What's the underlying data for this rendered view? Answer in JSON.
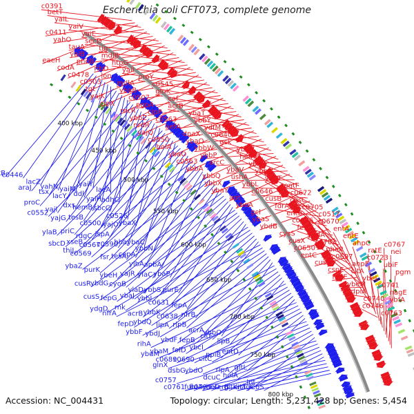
{
  "header": {
    "title": "Escherichia coli CFT073, complete genome"
  },
  "footer": {
    "accession": "Accession: NC_004431",
    "topology": "Topology: circular; Length: 5,231,428 bp; Genes: 5,454"
  },
  "colors": {
    "forward": "#e8141e",
    "reverse": "#1d1ded",
    "backbone": "#8a8a8a",
    "ticks": "#1e8c1e",
    "other": "#dd88dd",
    "other2": "#30c0d8"
  },
  "icons": {
    "genome-map": "circular-genome-arc"
  },
  "kbp_labels": [
    "400 kbp",
    "450 kbp",
    "500 kbp",
    "550 kbp",
    "600 kbp",
    "650 kbp",
    "700 kbp",
    "750 kbp",
    "800 kbp"
  ],
  "red_genes": [
    "c0391",
    "c0411",
    "eaeH",
    "betT",
    "yahO",
    "codA",
    "yaiL",
    "tauA",
    "c0478",
    "yaiV",
    "yaiB",
    "c0503",
    "yaiE",
    "phoB",
    "tgt",
    "secD",
    "ribD",
    "yajK",
    "tig",
    "lon",
    "clpX",
    "mdlB",
    "mdlA",
    "recR",
    "htpG",
    "ybaB",
    "ybbZ",
    "yaiI",
    "c0507",
    "nrdR",
    "proY",
    "pgpA",
    "yajQ",
    "c0545",
    "clpP",
    "c0550",
    "glnK",
    "c0563",
    "bolA",
    "cof",
    "aefA",
    "ybaO",
    "acrB",
    "dnaX",
    "c0563",
    "ybaT",
    "ybaQ",
    "ybbA",
    "ybbY",
    "ybbW",
    "ybbQ",
    "ydfM",
    "ybbP",
    "ybbX",
    "c0640",
    "arcC",
    "ybaY",
    "gsk",
    "ybaV",
    "apt",
    "ybaN",
    "ushA",
    "ybaA",
    "hemH",
    "ybbL",
    "gcl",
    "ybbF",
    "c0646",
    "ybaS",
    "ybbU",
    "cusB",
    "ybdB",
    "ybbT",
    "fdrA",
    "cysS",
    "entF",
    "entB",
    "cusX",
    "c0672",
    "c0686",
    "c0650",
    "cusC",
    "fes",
    "entC",
    "c0705",
    "ybdA",
    "cusA",
    "c0517",
    "c0703",
    "cspE",
    "c0670",
    "pheP",
    "fepE",
    "entA",
    "c0697",
    "ybeM",
    "entE",
    "ahpF",
    "dpiA",
    "ahpC",
    "citA",
    "c0740",
    "ratE",
    "ybeL",
    "c0746",
    "c0723",
    "c0741",
    "c0763",
    "ubiF",
    "nagE",
    "c0767",
    "pgm",
    "ybfA",
    "nei"
  ],
  "blue_genes": [
    "betB",
    "c0446",
    "lacZ",
    "yahN",
    "yaiM",
    "yaiY",
    "lacA",
    "araJ",
    "tsx",
    "lacY",
    "ddl",
    "yaiH",
    "adhC",
    "proC",
    "yajI",
    "dxs",
    "hemB",
    "sbcC",
    "c0526",
    "c0552",
    "yajG",
    "tesB",
    "c0500",
    "yajO",
    "ybaX",
    "ylaB",
    "priC",
    "rdgC",
    "ispA",
    "hha",
    "ybaC",
    "sbcD",
    "xseB",
    "c0567",
    "c0590",
    "copA",
    "ybbN",
    "thiJ",
    "c0569",
    "fsr",
    "tesA",
    "ylbA",
    "apbA",
    "ybaZ",
    "purK",
    "ybeH",
    "yajR",
    "ylaC",
    "ybaP",
    "cusR",
    "ybdG",
    "cyoB",
    "ylaD",
    "ybbS",
    "purE",
    "cusS",
    "fepG",
    "ybaJ",
    "ybbI",
    "c0631",
    "fepA",
    "ydgD",
    "rnk",
    "acrB",
    "ybbK",
    "c0638",
    "nfrB",
    "nfrA",
    "fepD",
    "ybdQ",
    "lipA",
    "rlpB",
    "acrA",
    "ybbO",
    "ybbF",
    "ybdJ",
    "ybdF",
    "fepB",
    "citF",
    "lipB",
    "rihA",
    "ybaM",
    "folD",
    "ybcI",
    "ppiB",
    "entD",
    "ybdM",
    "c0689",
    "c0690",
    "citC",
    "rlpA",
    "gltL",
    "glnX",
    "dsbG",
    "ybdO",
    "dcuC",
    "holA",
    "lnt",
    "c0757",
    "fur",
    "c0799",
    "ccrB",
    "citT",
    "leuS",
    "c0761",
    "fldA",
    "ybeD",
    "gltK",
    "nagC"
  ]
}
